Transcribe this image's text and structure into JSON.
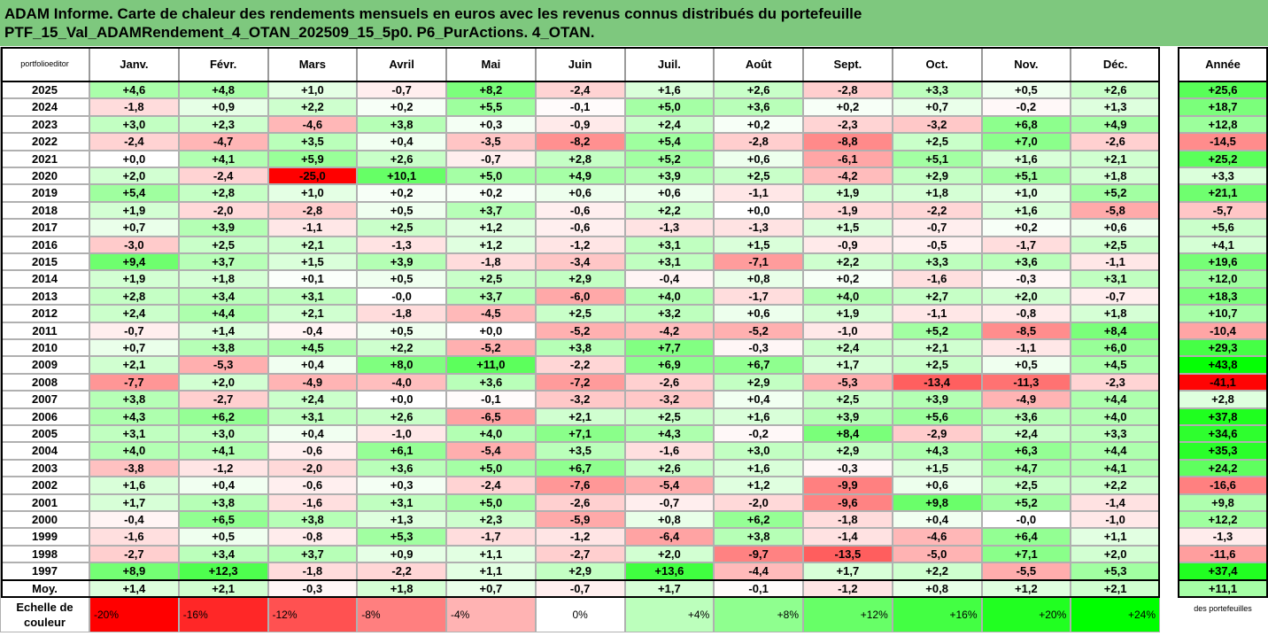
{
  "chart_data": {
    "type": "heatmap",
    "title_line1": "ADAM Informe. Carte de chaleur des rendements mensuels en euros avec les revenus connus distribués du portefeuille",
    "title_line2": "PTF_15_Val_ADAMRendement_4_OTAN_202509_15_5p0. P6_PurActions. 4_OTAN.",
    "logo_text": "portfolioeditor",
    "logo_text_bottom": "des portefeuilles",
    "months": [
      "Janv.",
      "Févr.",
      "Mars",
      "Avril",
      "Mai",
      "Juin",
      "Juil.",
      "Août",
      "Sept.",
      "Oct.",
      "Nov.",
      "Déc."
    ],
    "annual_label": "Année",
    "average_label": "Moy.",
    "scale_label": "Echelle de couleur",
    "scale": [
      "-20%",
      "-16%",
      "-12%",
      "-8%",
      "-4%",
      "0%",
      "+4%",
      "+8%",
      "+12%",
      "+16%",
      "+20%",
      "+24%"
    ],
    "scale_values": [
      -20,
      -16,
      -12,
      -8,
      -4,
      0,
      4,
      8,
      12,
      16,
      20,
      24
    ],
    "rows": [
      {
        "year": "2025",
        "values": [
          "+4,6",
          "+4,8",
          "+1,0",
          "-0,7",
          "+8,2",
          "-2,4",
          "+1,6",
          "+2,6",
          "-2,8",
          "+3,3",
          "+0,5",
          "+2,6"
        ],
        "annual": "+25,6"
      },
      {
        "year": "2024",
        "values": [
          "-1,8",
          "+0,9",
          "+2,2",
          "+0,2",
          "+5,5",
          "-0,1",
          "+5,0",
          "+3,6",
          "+0,2",
          "+0,7",
          "-0,2",
          "+1,3"
        ],
        "annual": "+18,7"
      },
      {
        "year": "2023",
        "values": [
          "+3,0",
          "+2,3",
          "-4,6",
          "+3,8",
          "+0,3",
          "-0,9",
          "+2,4",
          "+0,2",
          "-2,3",
          "-3,2",
          "+6,8",
          "+4,9"
        ],
        "annual": "+12,8"
      },
      {
        "year": "2022",
        "values": [
          "-2,4",
          "-4,7",
          "+3,5",
          "+0,4",
          "-3,5",
          "-8,2",
          "+5,4",
          "-2,8",
          "-8,8",
          "+2,5",
          "+7,0",
          "-2,6"
        ],
        "annual": "-14,5"
      },
      {
        "year": "2021",
        "values": [
          "+0,0",
          "+4,1",
          "+5,9",
          "+2,6",
          "-0,7",
          "+2,8",
          "+5,2",
          "+0,6",
          "-6,1",
          "+5,1",
          "+1,6",
          "+2,1"
        ],
        "annual": "+25,2"
      },
      {
        "year": "2020",
        "values": [
          "+2,0",
          "-2,4",
          "-25,0",
          "+10,1",
          "+5,0",
          "+4,9",
          "+3,9",
          "+2,5",
          "-4,2",
          "+2,9",
          "+5,1",
          "+1,8"
        ],
        "annual": "+3,3"
      },
      {
        "year": "2019",
        "values": [
          "+5,4",
          "+2,8",
          "+1,0",
          "+0,2",
          "+0,2",
          "+0,6",
          "+0,6",
          "-1,1",
          "+1,9",
          "+1,8",
          "+1,0",
          "+5,2"
        ],
        "annual": "+21,1"
      },
      {
        "year": "2018",
        "values": [
          "+1,9",
          "-2,0",
          "-2,8",
          "+0,5",
          "+3,7",
          "-0,6",
          "+2,2",
          "+0,0",
          "-1,9",
          "-2,2",
          "+1,6",
          "-5,8"
        ],
        "annual": "-5,7"
      },
      {
        "year": "2017",
        "values": [
          "+0,7",
          "+3,9",
          "-1,1",
          "+2,5",
          "+1,2",
          "-0,6",
          "-1,3",
          "-1,3",
          "+1,5",
          "-0,7",
          "+0,2",
          "+0,6"
        ],
        "annual": "+5,6"
      },
      {
        "year": "2016",
        "values": [
          "-3,0",
          "+2,5",
          "+2,1",
          "-1,3",
          "+1,2",
          "-1,2",
          "+3,1",
          "+1,5",
          "-0,9",
          "-0,5",
          "-1,7",
          "+2,5"
        ],
        "annual": "+4,1"
      },
      {
        "year": "2015",
        "values": [
          "+9,4",
          "+3,7",
          "+1,5",
          "+3,9",
          "-1,8",
          "-3,4",
          "+3,1",
          "-7,1",
          "+2,2",
          "+3,3",
          "+3,6",
          "-1,1"
        ],
        "annual": "+19,6"
      },
      {
        "year": "2014",
        "values": [
          "+1,9",
          "+1,8",
          "+0,1",
          "+0,5",
          "+2,5",
          "+2,9",
          "-0,4",
          "+0,8",
          "+0,2",
          "-1,6",
          "-0,3",
          "+3,1"
        ],
        "annual": "+12,0"
      },
      {
        "year": "2013",
        "values": [
          "+2,8",
          "+3,4",
          "+3,1",
          "-0,0",
          "+3,7",
          "-6,0",
          "+4,0",
          "-1,7",
          "+4,0",
          "+2,7",
          "+2,0",
          "-0,7"
        ],
        "annual": "+18,3"
      },
      {
        "year": "2012",
        "values": [
          "+2,4",
          "+4,4",
          "+2,1",
          "-1,8",
          "-4,5",
          "+2,5",
          "+3,2",
          "+0,6",
          "+1,9",
          "-1,1",
          "-0,8",
          "+1,8"
        ],
        "annual": "+10,7"
      },
      {
        "year": "2011",
        "values": [
          "-0,7",
          "+1,4",
          "-0,4",
          "+0,5",
          "+0,0",
          "-5,2",
          "-4,2",
          "-5,2",
          "-1,0",
          "+5,2",
          "-8,5",
          "+8,4"
        ],
        "annual": "-10,4"
      },
      {
        "year": "2010",
        "values": [
          "+0,7",
          "+3,8",
          "+4,5",
          "+2,2",
          "-5,2",
          "+3,8",
          "+7,7",
          "-0,3",
          "+2,4",
          "+2,1",
          "-1,1",
          "+6,0"
        ],
        "annual": "+29,3"
      },
      {
        "year": "2009",
        "values": [
          "+2,1",
          "-5,3",
          "+0,4",
          "+8,0",
          "+11,0",
          "-2,2",
          "+6,9",
          "+6,7",
          "+1,7",
          "+2,5",
          "+0,5",
          "+4,5"
        ],
        "annual": "+43,8"
      },
      {
        "year": "2008",
        "values": [
          "-7,7",
          "+2,0",
          "-4,9",
          "-4,0",
          "+3,6",
          "-7,2",
          "-2,6",
          "+2,9",
          "-5,3",
          "-13,4",
          "-11,3",
          "-2,3"
        ],
        "annual": "-41,1"
      },
      {
        "year": "2007",
        "values": [
          "+3,8",
          "-2,7",
          "+2,4",
          "+0,0",
          "-0,1",
          "-3,2",
          "-3,2",
          "+0,4",
          "+2,5",
          "+3,9",
          "-4,9",
          "+4,4"
        ],
        "annual": "+2,8"
      },
      {
        "year": "2006",
        "values": [
          "+4,3",
          "+6,2",
          "+3,1",
          "+2,6",
          "-6,5",
          "+2,1",
          "+2,5",
          "+1,6",
          "+3,9",
          "+5,6",
          "+3,6",
          "+4,0"
        ],
        "annual": "+37,8"
      },
      {
        "year": "2005",
        "values": [
          "+3,1",
          "+3,0",
          "+0,4",
          "-1,0",
          "+4,0",
          "+7,1",
          "+4,3",
          "-0,2",
          "+8,4",
          "-2,9",
          "+2,4",
          "+3,3"
        ],
        "annual": "+34,6"
      },
      {
        "year": "2004",
        "values": [
          "+4,0",
          "+4,1",
          "-0,6",
          "+6,1",
          "-5,4",
          "+3,5",
          "-1,6",
          "+3,0",
          "+2,9",
          "+4,3",
          "+6,3",
          "+4,4"
        ],
        "annual": "+35,3"
      },
      {
        "year": "2003",
        "values": [
          "-3,8",
          "-1,2",
          "-2,0",
          "+3,6",
          "+5,0",
          "+6,7",
          "+2,6",
          "+1,6",
          "-0,3",
          "+1,5",
          "+4,7",
          "+4,1"
        ],
        "annual": "+24,2"
      },
      {
        "year": "2002",
        "values": [
          "+1,6",
          "+0,4",
          "-0,6",
          "+0,3",
          "-2,4",
          "-7,6",
          "-5,4",
          "+1,2",
          "-9,9",
          "+0,6",
          "+2,5",
          "+2,2"
        ],
        "annual": "-16,6"
      },
      {
        "year": "2001",
        "values": [
          "+1,7",
          "+3,8",
          "-1,6",
          "+3,1",
          "+5,0",
          "-2,6",
          "-0,7",
          "-2,0",
          "-9,6",
          "+9,8",
          "+5,2",
          "-1,4"
        ],
        "annual": "+9,8"
      },
      {
        "year": "2000",
        "values": [
          "-0,4",
          "+6,5",
          "+3,8",
          "+1,3",
          "+2,3",
          "-5,9",
          "+0,8",
          "+6,2",
          "-1,8",
          "+0,4",
          "-0,0",
          "-1,0"
        ],
        "annual": "+12,2"
      },
      {
        "year": "1999",
        "values": [
          "-1,6",
          "+0,5",
          "-0,8",
          "+5,3",
          "-1,7",
          "-1,2",
          "-6,4",
          "+3,8",
          "-1,4",
          "-4,6",
          "+6,4",
          "+1,1"
        ],
        "annual": "-1,3"
      },
      {
        "year": "1998",
        "values": [
          "-2,7",
          "+3,4",
          "+3,7",
          "+0,9",
          "+1,1",
          "-2,7",
          "+2,0",
          "-9,7",
          "-13,5",
          "-5,0",
          "+7,1",
          "+2,0"
        ],
        "annual": "-11,6"
      },
      {
        "year": "1997",
        "values": [
          "+8,9",
          "+12,3",
          "-1,8",
          "-2,2",
          "+1,1",
          "+2,9",
          "+13,6",
          "-4,4",
          "+1,7",
          "+2,2",
          "-5,5",
          "+5,3"
        ],
        "annual": "+37,4"
      }
    ],
    "average": {
      "values": [
        "+1,4",
        "+2,1",
        "-0,3",
        "+1,8",
        "+0,7",
        "-0,7",
        "+1,7",
        "-0,1",
        "-1,2",
        "+0,8",
        "+1,2",
        "+2,1"
      ],
      "annual": "+11,1"
    },
    "colors": {
      "negative_max": "#ff0000",
      "positive_max": "#00ff00",
      "neutral": "#ffffff",
      "title_bg": "#7ec87e"
    }
  }
}
